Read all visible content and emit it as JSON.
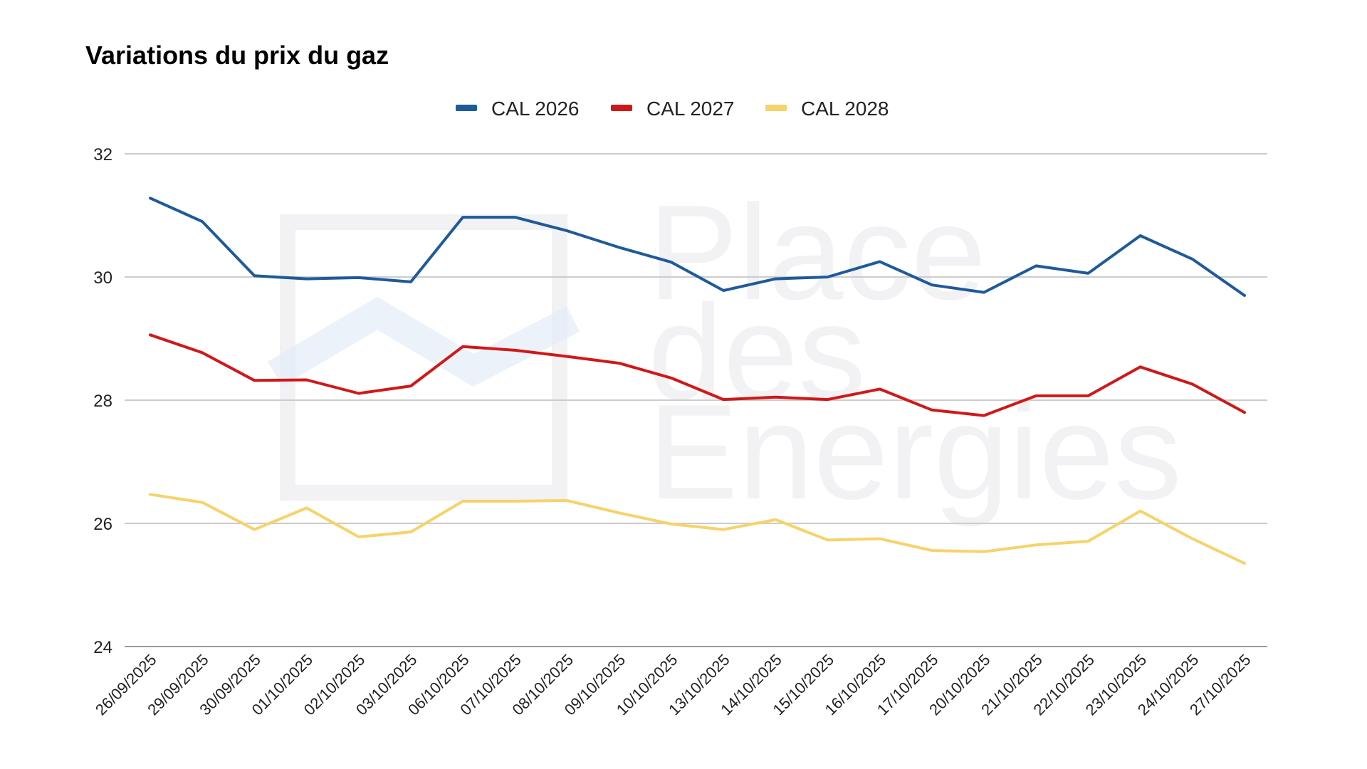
{
  "chart_data": {
    "type": "line",
    "title": "Variations du prix du gaz",
    "xlabel": "",
    "ylabel": "",
    "ylim": [
      24,
      32
    ],
    "y_ticks": [
      24,
      26,
      28,
      30,
      32
    ],
    "grid": true,
    "legend_position": "top-center",
    "x": [
      "26/09/2025",
      "29/09/2025",
      "30/09/2025",
      "01/10/2025",
      "02/10/2025",
      "03/10/2025",
      "06/10/2025",
      "07/10/2025",
      "08/10/2025",
      "09/10/2025",
      "10/10/2025",
      "13/10/2025",
      "14/10/2025",
      "15/10/2025",
      "16/10/2025",
      "17/10/2025",
      "20/10/2025",
      "21/10/2025",
      "22/10/2025",
      "23/10/2025",
      "24/10/2025",
      "27/10/2025"
    ],
    "series": [
      {
        "name": "CAL 2026",
        "color": "#1f5a9a",
        "values": [
          31.28,
          30.9,
          30.02,
          29.97,
          29.99,
          29.92,
          30.97,
          30.97,
          30.75,
          30.48,
          30.24,
          29.78,
          29.97,
          30.0,
          30.25,
          29.87,
          29.75,
          30.18,
          30.06,
          30.67,
          30.29,
          29.7
        ]
      },
      {
        "name": "CAL 2027",
        "color": "#d01818",
        "values": [
          29.06,
          28.77,
          28.32,
          28.33,
          28.11,
          28.23,
          28.87,
          28.81,
          28.71,
          28.6,
          28.36,
          28.01,
          28.05,
          28.01,
          28.18,
          27.84,
          27.75,
          28.07,
          28.07,
          28.54,
          28.26,
          27.8
        ]
      },
      {
        "name": "CAL 2028",
        "color": "#f6d36a",
        "values": [
          26.47,
          26.34,
          25.9,
          26.25,
          25.78,
          25.86,
          26.36,
          26.36,
          26.37,
          26.17,
          25.99,
          25.9,
          26.06,
          25.73,
          25.75,
          25.56,
          25.54,
          25.65,
          25.71,
          26.2,
          25.75,
          25.35
        ]
      }
    ]
  },
  "watermark": {
    "lines": [
      "Place",
      "des",
      "Energies"
    ],
    "color": "#e9e9ec",
    "accent": "#e3ecf8"
  }
}
